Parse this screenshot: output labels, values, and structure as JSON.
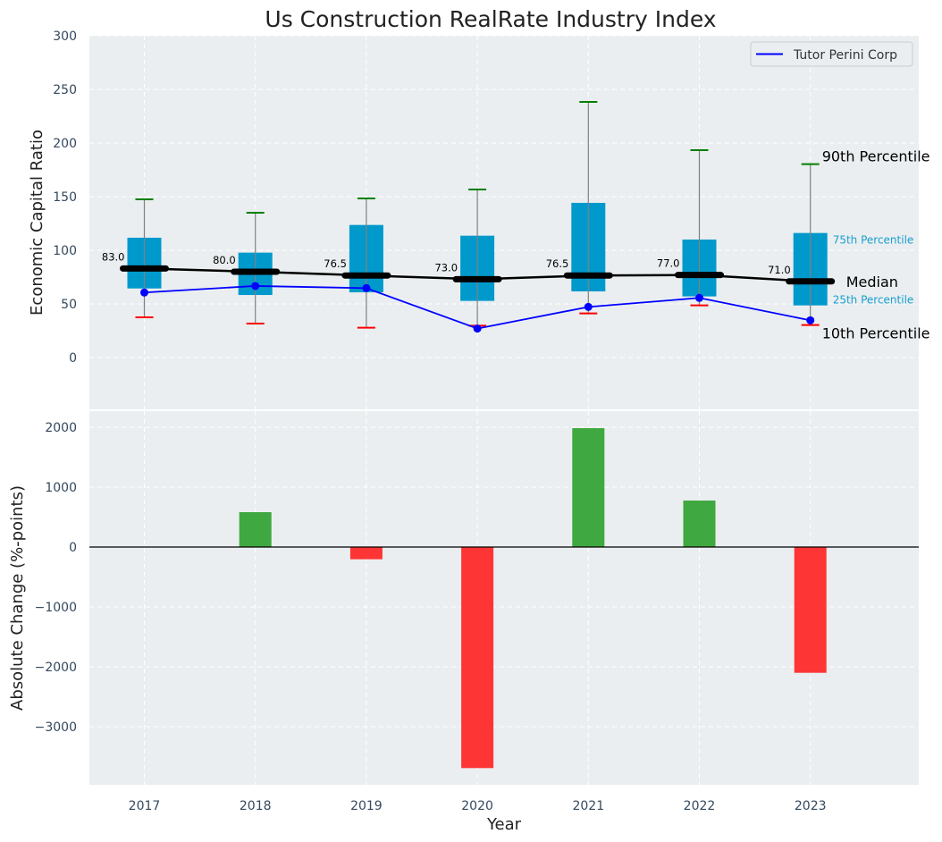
{
  "chart_data": [
    {
      "type": "box",
      "title": "Us Construction RealRate Industry Index",
      "xlabel": "",
      "ylabel": "Economic Capital Ratio",
      "ylim": [
        -45,
        300
      ],
      "yticks": [
        0,
        50,
        100,
        150,
        200,
        250,
        300
      ],
      "grid": true,
      "categories": [
        "2017",
        "2018",
        "2019",
        "2020",
        "2021",
        "2022",
        "2023"
      ],
      "percentiles": {
        "p10": [
          37.5,
          31.7,
          27.8,
          29.7,
          41.1,
          48.6,
          30.3
        ],
        "p25": [
          64.4,
          58.3,
          60.8,
          52.8,
          61.7,
          57.0,
          48.6
        ],
        "median": [
          83.0,
          80.0,
          76.5,
          73.0,
          76.5,
          77.0,
          71.0
        ],
        "p75": [
          111.7,
          97.8,
          123.6,
          113.6,
          144.2,
          110.0,
          116.1
        ],
        "p90": [
          147.5,
          135.0,
          148.3,
          156.7,
          238.3,
          193.3,
          180.3
        ]
      },
      "median_labels": [
        "83.0",
        "80.0",
        "76.5",
        "73.0",
        "76.5",
        "77.0",
        "71.0"
      ],
      "series": [
        {
          "name": "Tutor Perini Corp",
          "values": [
            60.6,
            66.7,
            64.7,
            27.0,
            47.2,
            55.6,
            34.7
          ],
          "color": "#0000ff"
        }
      ],
      "legend": {
        "entries": [
          "Tutor Perini Corp"
        ],
        "placement": "top-right"
      },
      "annotations": {
        "p90": "90th Percentile",
        "p75": "75th Percentile",
        "median": "Median",
        "p25": "25th Percentile",
        "p10": "10th Percentile"
      },
      "colors": {
        "box": "#0099cc",
        "median": "#000000",
        "p90_cap": "#008000",
        "p10_cap": "#ff0000",
        "whisker": "#808080",
        "background": "#eaeef0",
        "annotation_small": "#1a9fd0"
      }
    },
    {
      "type": "bar",
      "xlabel": "Year",
      "ylabel": "Absolute Change (%-points)",
      "ylim": [
        -3950,
        2200
      ],
      "yticks": [
        -3000,
        -2000,
        -1000,
        0,
        1000,
        2000
      ],
      "grid": true,
      "categories": [
        "2017",
        "2018",
        "2019",
        "2020",
        "2021",
        "2022",
        "2023"
      ],
      "values": [
        0,
        582,
        -204,
        -3691,
        1985,
        776,
        -2100
      ],
      "colors": {
        "positive": "#2ca02c",
        "negative": "#ff2020"
      }
    }
  ]
}
